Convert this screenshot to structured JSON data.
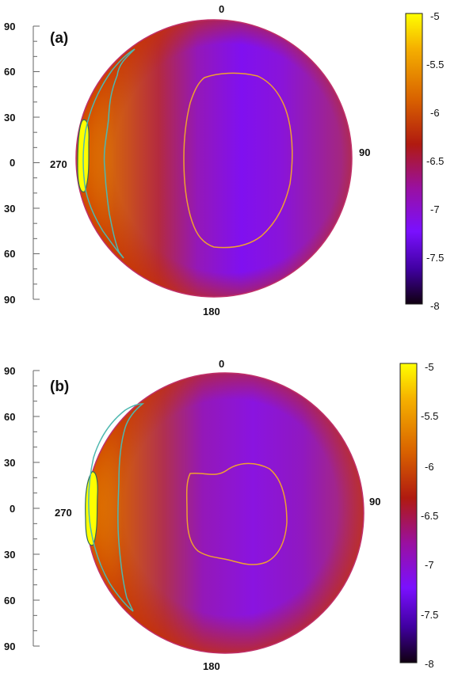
{
  "chart_data": [
    {
      "type": "heatmap",
      "panel_label": "(a)",
      "projection": "orthographic-disk",
      "y_tick_labels": [
        "90",
        "60",
        "30",
        "0",
        "30",
        "60",
        "90"
      ],
      "longitude_labels": {
        "top": "0",
        "right": "90",
        "bottom": "180",
        "left": "270"
      },
      "colorbar": {
        "min": -8,
        "max": -5,
        "tick_labels": [
          "-5",
          "-5.5",
          "-6",
          "-6.5",
          "-7",
          "-7.5",
          "-8"
        ]
      },
      "colors": {
        "yellow": "#ffff00",
        "orange": "#e08a00",
        "red": "#c02a00",
        "magenta": "#9a10c0",
        "purple": "#7a10ff",
        "dark": "#200020",
        "contour_inner": "#f0a030",
        "contour_outer": "#4fb8b0"
      }
    },
    {
      "type": "heatmap",
      "panel_label": "(b)",
      "projection": "orthographic-disk",
      "y_tick_labels": [
        "90",
        "60",
        "30",
        "0",
        "30",
        "60",
        "90"
      ],
      "longitude_labels": {
        "top": "0",
        "right": "90",
        "bottom": "180",
        "left": "270"
      },
      "colorbar": {
        "min": -8,
        "max": -5,
        "tick_labels": [
          "-5",
          "-5.5",
          "-6",
          "-6.5",
          "-7",
          "-7.5",
          "-8"
        ]
      },
      "colors": {
        "yellow": "#ffff00",
        "orange": "#e08a00",
        "red": "#c02a00",
        "magenta": "#9a10c0",
        "purple": "#7a10ff",
        "dark": "#200020",
        "contour_inner": "#f0a030",
        "contour_outer": "#4fb8b0"
      }
    }
  ]
}
